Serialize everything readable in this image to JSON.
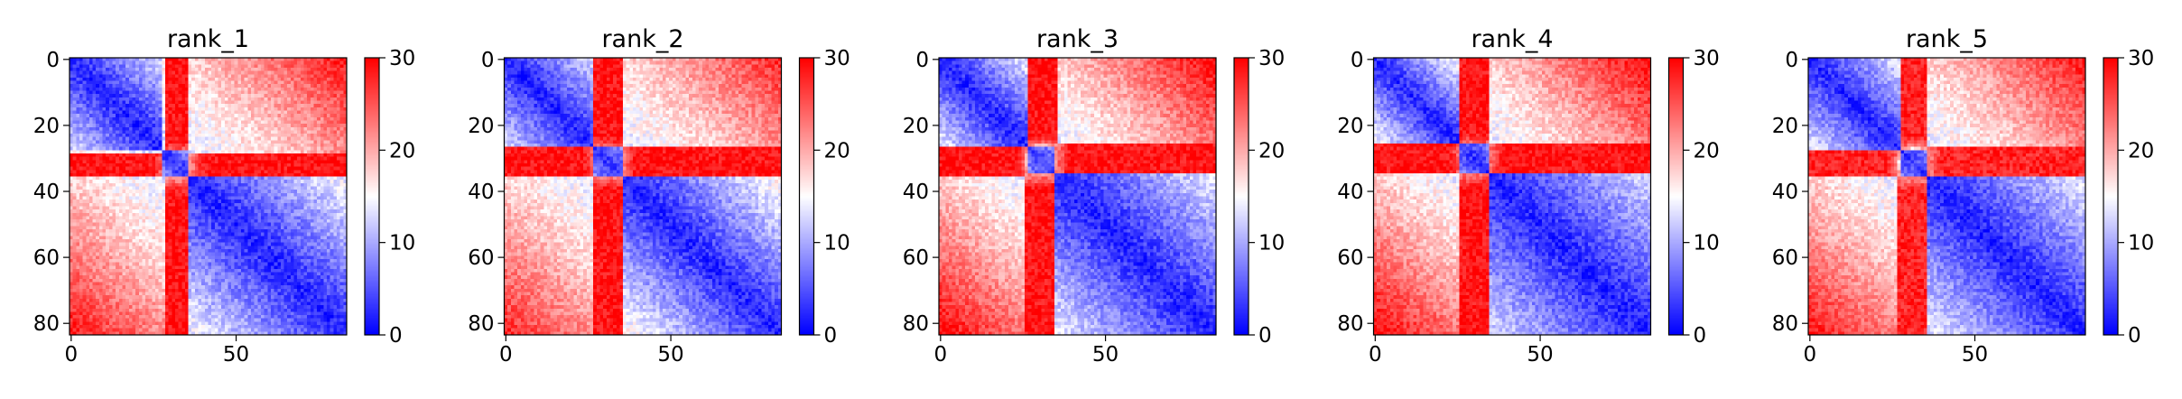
{
  "chart_data": [
    {
      "type": "heatmap",
      "title": "rank_1",
      "xlabel": "",
      "ylabel": "",
      "matrix_size": 84,
      "xlim": [
        0,
        83
      ],
      "ylim": [
        83,
        0
      ],
      "x_ticks": [
        0,
        50
      ],
      "y_ticks": [
        0,
        20,
        40,
        60,
        80
      ],
      "colorbar": {
        "min": 0,
        "max": 30,
        "ticks": [
          0,
          10,
          20,
          30
        ],
        "colormap": "bwr"
      },
      "domains": [
        {
          "range": [
            0,
            28
          ],
          "diag_value": 2,
          "edge_value": 12
        },
        {
          "range": [
            28,
            36
          ],
          "diag_value": 3,
          "edge_value": 8
        },
        {
          "range": [
            36,
            84
          ],
          "diag_value": 2,
          "edge_value": 14
        }
      ],
      "stripe": {
        "range": [
          29,
          36
        ],
        "value": 29
      },
      "corner_value": 27,
      "noise": 2.5,
      "seed": 11
    },
    {
      "type": "heatmap",
      "title": "rank_2",
      "xlabel": "",
      "ylabel": "",
      "matrix_size": 84,
      "xlim": [
        0,
        83
      ],
      "ylim": [
        83,
        0
      ],
      "x_ticks": [
        0,
        50
      ],
      "y_ticks": [
        0,
        20,
        40,
        60,
        80
      ],
      "colorbar": {
        "min": 0,
        "max": 30,
        "ticks": [
          0,
          10,
          20,
          30
        ],
        "colormap": "bwr"
      },
      "domains": [
        {
          "range": [
            0,
            27
          ],
          "diag_value": 2,
          "edge_value": 12
        },
        {
          "range": [
            27,
            36
          ],
          "diag_value": 3,
          "edge_value": 8
        },
        {
          "range": [
            36,
            84
          ],
          "diag_value": 2,
          "edge_value": 15
        }
      ],
      "stripe": {
        "range": [
          27,
          36
        ],
        "value": 29
      },
      "corner_value": 26,
      "noise": 2.5,
      "seed": 23
    },
    {
      "type": "heatmap",
      "title": "rank_3",
      "xlabel": "",
      "ylabel": "",
      "matrix_size": 84,
      "xlim": [
        0,
        83
      ],
      "ylim": [
        83,
        0
      ],
      "x_ticks": [
        0,
        50
      ],
      "y_ticks": [
        0,
        20,
        40,
        60,
        80
      ],
      "colorbar": {
        "min": 0,
        "max": 30,
        "ticks": [
          0,
          10,
          20,
          30
        ],
        "colormap": "bwr"
      },
      "domains": [
        {
          "range": [
            0,
            27
          ],
          "diag_value": 2,
          "edge_value": 13
        },
        {
          "range": [
            27,
            35
          ],
          "diag_value": 3,
          "edge_value": 8
        },
        {
          "range": [
            35,
            84
          ],
          "diag_value": 2,
          "edge_value": 13
        }
      ],
      "stripe": {
        "range": [
          26,
          36
        ],
        "value": 29
      },
      "corner_value": 28,
      "noise": 2.5,
      "seed": 37
    },
    {
      "type": "heatmap",
      "title": "rank_4",
      "xlabel": "",
      "ylabel": "",
      "matrix_size": 84,
      "xlim": [
        0,
        83
      ],
      "ylim": [
        83,
        0
      ],
      "x_ticks": [
        0,
        50
      ],
      "y_ticks": [
        0,
        20,
        40,
        60,
        80
      ],
      "colorbar": {
        "min": 0,
        "max": 30,
        "ticks": [
          0,
          10,
          20,
          30
        ],
        "colormap": "bwr"
      },
      "domains": [
        {
          "range": [
            0,
            26
          ],
          "diag_value": 2,
          "edge_value": 14
        },
        {
          "range": [
            26,
            35
          ],
          "diag_value": 3,
          "edge_value": 8
        },
        {
          "range": [
            35,
            84
          ],
          "diag_value": 2,
          "edge_value": 12
        }
      ],
      "stripe": {
        "range": [
          26,
          35
        ],
        "value": 29
      },
      "corner_value": 28,
      "noise": 2.5,
      "seed": 41
    },
    {
      "type": "heatmap",
      "title": "rank_5",
      "xlabel": "",
      "ylabel": "",
      "matrix_size": 84,
      "xlim": [
        0,
        83
      ],
      "ylim": [
        83,
        0
      ],
      "x_ticks": [
        0,
        50
      ],
      "y_ticks": [
        0,
        20,
        40,
        60,
        80
      ],
      "colorbar": {
        "min": 0,
        "max": 30,
        "ticks": [
          0,
          10,
          20,
          30
        ],
        "colormap": "bwr"
      },
      "domains": [
        {
          "range": [
            0,
            28
          ],
          "diag_value": 2,
          "edge_value": 13
        },
        {
          "range": [
            28,
            36
          ],
          "diag_value": 3,
          "edge_value": 8
        },
        {
          "range": [
            36,
            84
          ],
          "diag_value": 2,
          "edge_value": 13
        }
      ],
      "stripe": {
        "range": [
          27,
          36
        ],
        "value": 28
      },
      "corner_value": 27,
      "noise": 2.5,
      "seed": 53
    }
  ]
}
